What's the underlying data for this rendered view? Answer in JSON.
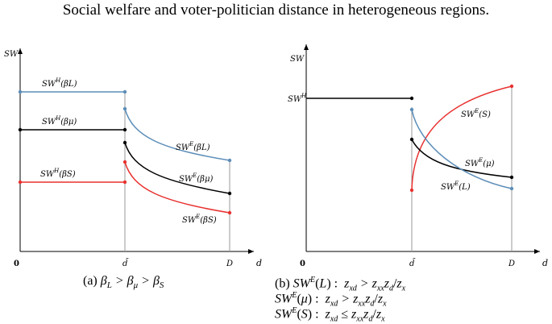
{
  "figure_title": "Social welfare and voter-politician distance in heterogeneous regions.",
  "captions": {
    "a": "(a) βL > βμ > βS",
    "b_line1": "(b) SW^E(L) :  z_xd > z_xx z_d / z_x",
    "b_line2": "SW^E(μ) :  z_xd > z_xx z_d / z_x",
    "b_line3": "SW^E(S) :  z_xd ≤ z_xx z_d / z_x"
  },
  "chart_data": [
    {
      "type": "line",
      "panel": "a",
      "ylabel": "SW",
      "xlabel": "d",
      "x_ticks": [
        "0",
        "d̄",
        "D"
      ],
      "x_domain": [
        0,
        1
      ],
      "y_domain": [
        0,
        1
      ],
      "grid": false,
      "series": [
        {
          "name": "SW^H(βL)",
          "color": "#5b8db8",
          "segment": "H",
          "x": [
            0,
            0.515
          ],
          "y": [
            0.815,
            0.815
          ]
        },
        {
          "name": "SW^H(βμ)",
          "color": "#000000",
          "segment": "H",
          "x": [
            0,
            0.515
          ],
          "y": [
            0.62,
            0.62
          ]
        },
        {
          "name": "SW^H(βS)",
          "color": "#e8312f",
          "segment": "H",
          "x": [
            0,
            0.515
          ],
          "y": [
            0.355,
            0.355
          ]
        },
        {
          "name": "SW^E(βL)",
          "color": "#5b8db8",
          "segment": "E",
          "x": [
            0.515,
            1.0
          ],
          "y": [
            0.72,
            0.45
          ]
        },
        {
          "name": "SW^E(βμ)",
          "color": "#000000",
          "segment": "E",
          "x": [
            0.515,
            1.0
          ],
          "y": [
            0.55,
            0.3
          ]
        },
        {
          "name": "SW^E(βS)",
          "color": "#e8312f",
          "segment": "E",
          "x": [
            0.515,
            1.0
          ],
          "y": [
            0.45,
            0.2
          ]
        }
      ]
    },
    {
      "type": "line",
      "panel": "b",
      "ylabel": "SW",
      "xlabel": "d",
      "x_ticks": [
        "0",
        "d̄",
        "D"
      ],
      "x_domain": [
        0,
        1
      ],
      "y_domain": [
        0,
        1
      ],
      "grid": false,
      "series": [
        {
          "name": "SW^H",
          "color": "#000000",
          "segment": "H",
          "x": [
            0,
            0.515
          ],
          "y": [
            0.83,
            0.83
          ]
        },
        {
          "name": "SW^E(S)",
          "color": "#e8312f",
          "segment": "E",
          "shape": "concave-up",
          "x": [
            0.515,
            1.0
          ],
          "y": [
            0.3,
            0.93
          ]
        },
        {
          "name": "SW^E(μ)",
          "color": "#000000",
          "segment": "E",
          "x": [
            0.515,
            1.0
          ],
          "y": [
            0.56,
            0.37
          ]
        },
        {
          "name": "SW^E(L)",
          "color": "#5b8db8",
          "segment": "E",
          "x": [
            0.515,
            1.0
          ],
          "y": [
            0.72,
            0.31
          ]
        }
      ]
    }
  ]
}
